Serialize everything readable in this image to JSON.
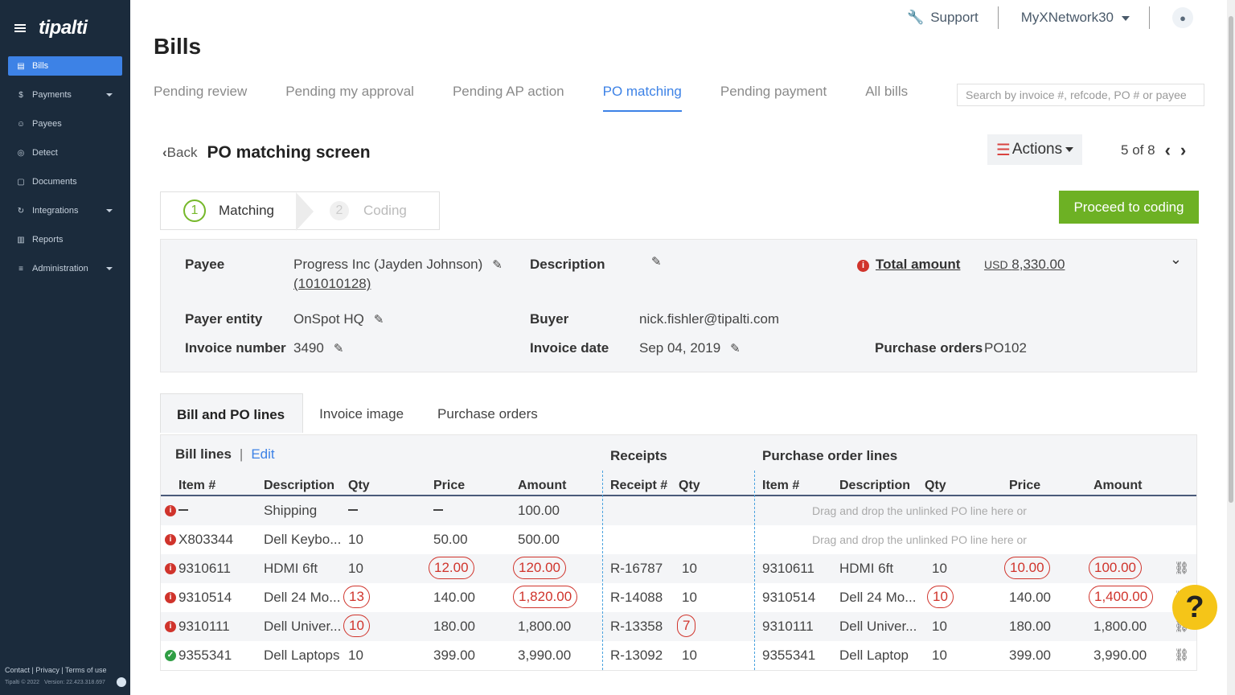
{
  "sidebar": {
    "logo": "tipalti",
    "items": [
      {
        "label": "Bills",
        "icon": "document-icon",
        "active": true
      },
      {
        "label": "Payments",
        "icon": "money-icon",
        "caret": true
      },
      {
        "label": "Payees",
        "icon": "people-icon"
      },
      {
        "label": "Detect",
        "icon": "detect-icon"
      },
      {
        "label": "Documents",
        "icon": "file-icon"
      },
      {
        "label": "Integrations",
        "icon": "sync-icon",
        "caret": true
      },
      {
        "label": "Reports",
        "icon": "chart-icon"
      },
      {
        "label": "Administration",
        "icon": "sliders-icon",
        "caret": true
      }
    ],
    "footer_links": "Contact  |  Privacy  |  Terms of use",
    "copyright": "Tipalti © 2022",
    "version": "Version: 22.423.318.697"
  },
  "topbar": {
    "support": "Support",
    "account": "MyXNetwork30"
  },
  "page": {
    "title": "Bills"
  },
  "tabs": [
    "Pending review",
    "Pending my approval",
    "Pending AP action",
    "PO matching",
    "Pending payment",
    "All bills"
  ],
  "search": {
    "placeholder": "Search by invoice #, refcode, PO # or payee"
  },
  "back": "Back",
  "po_title": "PO matching screen",
  "actions": "Actions",
  "pager": {
    "current": "5",
    "of": "of",
    "total": "8"
  },
  "steps": [
    {
      "num": "1",
      "label": "Matching"
    },
    {
      "num": "2",
      "label": "Coding"
    }
  ],
  "proceed": "Proceed to coding",
  "info": {
    "payee_label": "Payee",
    "payee_value": "Progress Inc (Jayden Johnson)",
    "payee_id": "(101010128)",
    "description_label": "Description",
    "total_label": "Total amount",
    "total_currency": "USD",
    "total_value": "8,330.00",
    "payer_label": "Payer entity",
    "payer_value": "OnSpot HQ",
    "buyer_label": "Buyer",
    "buyer_value": "nick.fishler@tipalti.com",
    "invoice_label": "Invoice number",
    "invoice_value": "3490",
    "date_label": "Invoice date",
    "date_value": "Sep 04, 2019",
    "po_label": "Purchase orders",
    "po_value": "PO102"
  },
  "subtabs": [
    "Bill and PO lines",
    "Invoice image",
    "Purchase orders"
  ],
  "grid": {
    "bill_lines": "Bill lines",
    "sep": "|",
    "edit": "Edit",
    "receipts": "Receipts",
    "po_lines": "Purchase order lines",
    "headers": {
      "item": "Item #",
      "desc": "Description",
      "qty": "Qty",
      "price": "Price",
      "amount": "Amount",
      "receipt": "Receipt #",
      "rqty": "Qty",
      "po_item": "Item #",
      "po_desc": "Description",
      "po_qty": "Qty",
      "po_price": "Price",
      "po_amount": "Amount"
    },
    "drag_hint": "Drag and drop the unlinked PO line here or",
    "rows": [
      {
        "status": "err",
        "item": "",
        "desc": "Shipping",
        "qty": "",
        "price": "",
        "amount": "100.00",
        "receipt": "",
        "rqty": "",
        "po_item": "",
        "po_desc": "",
        "po_qty": "",
        "po_price": "",
        "po_amount": "",
        "drag": true
      },
      {
        "status": "err",
        "item": "X803344",
        "desc": "Dell Keybo...",
        "qty": "10",
        "price": "50.00",
        "amount": "500.00",
        "receipt": "",
        "rqty": "",
        "po_item": "",
        "po_desc": "",
        "po_qty": "",
        "po_price": "",
        "po_amount": "",
        "drag": true
      },
      {
        "status": "err",
        "item": "9310611",
        "desc": "HDMI 6ft",
        "qty": "10",
        "price": "12.00",
        "amount": "120.00",
        "receipt": "R-16787",
        "rqty": "10",
        "po_item": "9310611",
        "po_desc": "HDMI 6ft",
        "po_qty": "10",
        "po_price": "10.00",
        "po_amount": "100.00"
      },
      {
        "status": "err",
        "item": "9310514",
        "desc": "Dell 24 Mo...",
        "qty": "13",
        "price": "140.00",
        "amount": "1,820.00",
        "receipt": "R-14088",
        "rqty": "10",
        "po_item": "9310514",
        "po_desc": "Dell 24 Mo...",
        "po_qty": "10",
        "po_price": "140.00",
        "po_amount": "1,400.00"
      },
      {
        "status": "err",
        "item": "9310111",
        "desc": "Dell Univer...",
        "qty": "10",
        "price": "180.00",
        "amount": "1,800.00",
        "receipt": "R-13358",
        "rqty": "7",
        "po_item": "9310111",
        "po_desc": "Dell Univer...",
        "po_qty": "10",
        "po_price": "180.00",
        "po_amount": "1,800.00"
      },
      {
        "status": "ok",
        "item": "9355341",
        "desc": "Dell Laptops",
        "qty": "10",
        "price": "399.00",
        "amount": "3,990.00",
        "receipt": "R-13092",
        "rqty": "10",
        "po_item": "9355341",
        "po_desc": "Dell Laptop",
        "po_qty": "10",
        "po_price": "399.00",
        "po_amount": "3,990.00"
      }
    ]
  },
  "help": "?"
}
